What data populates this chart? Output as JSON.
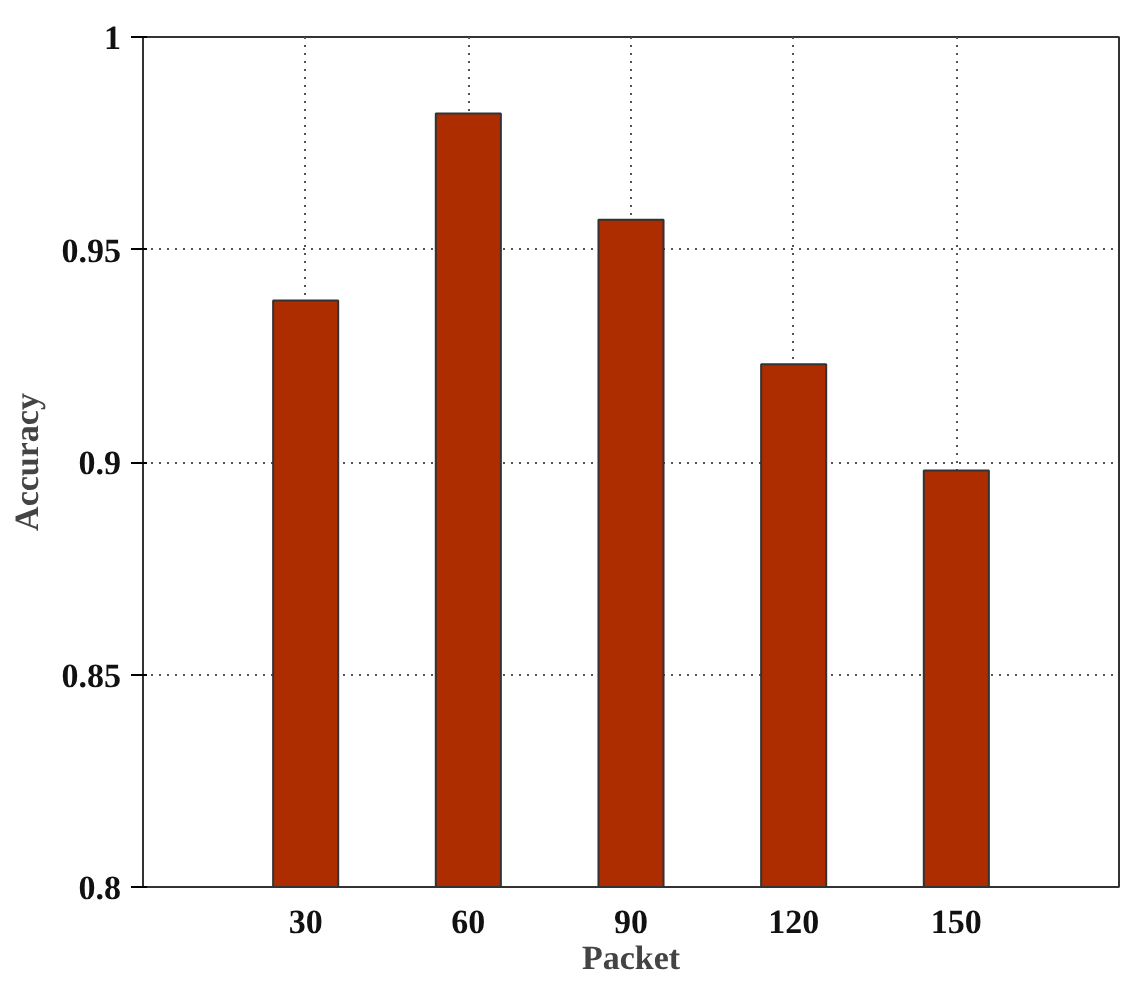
{
  "chart_data": {
    "type": "bar",
    "xlabel": "Packet",
    "ylabel": "Accuracy",
    "x": [
      30,
      60,
      90,
      120,
      150
    ],
    "values": [
      0.938,
      0.982,
      0.957,
      0.923,
      0.898
    ],
    "color": "#ad2d00",
    "xlim": [
      0,
      180
    ],
    "xticks": [
      30,
      60,
      90,
      120,
      150
    ],
    "ylim": [
      0.8,
      1
    ],
    "yticks": [
      0.8,
      0.85,
      0.9,
      0.95,
      1
    ],
    "grid": true
  }
}
